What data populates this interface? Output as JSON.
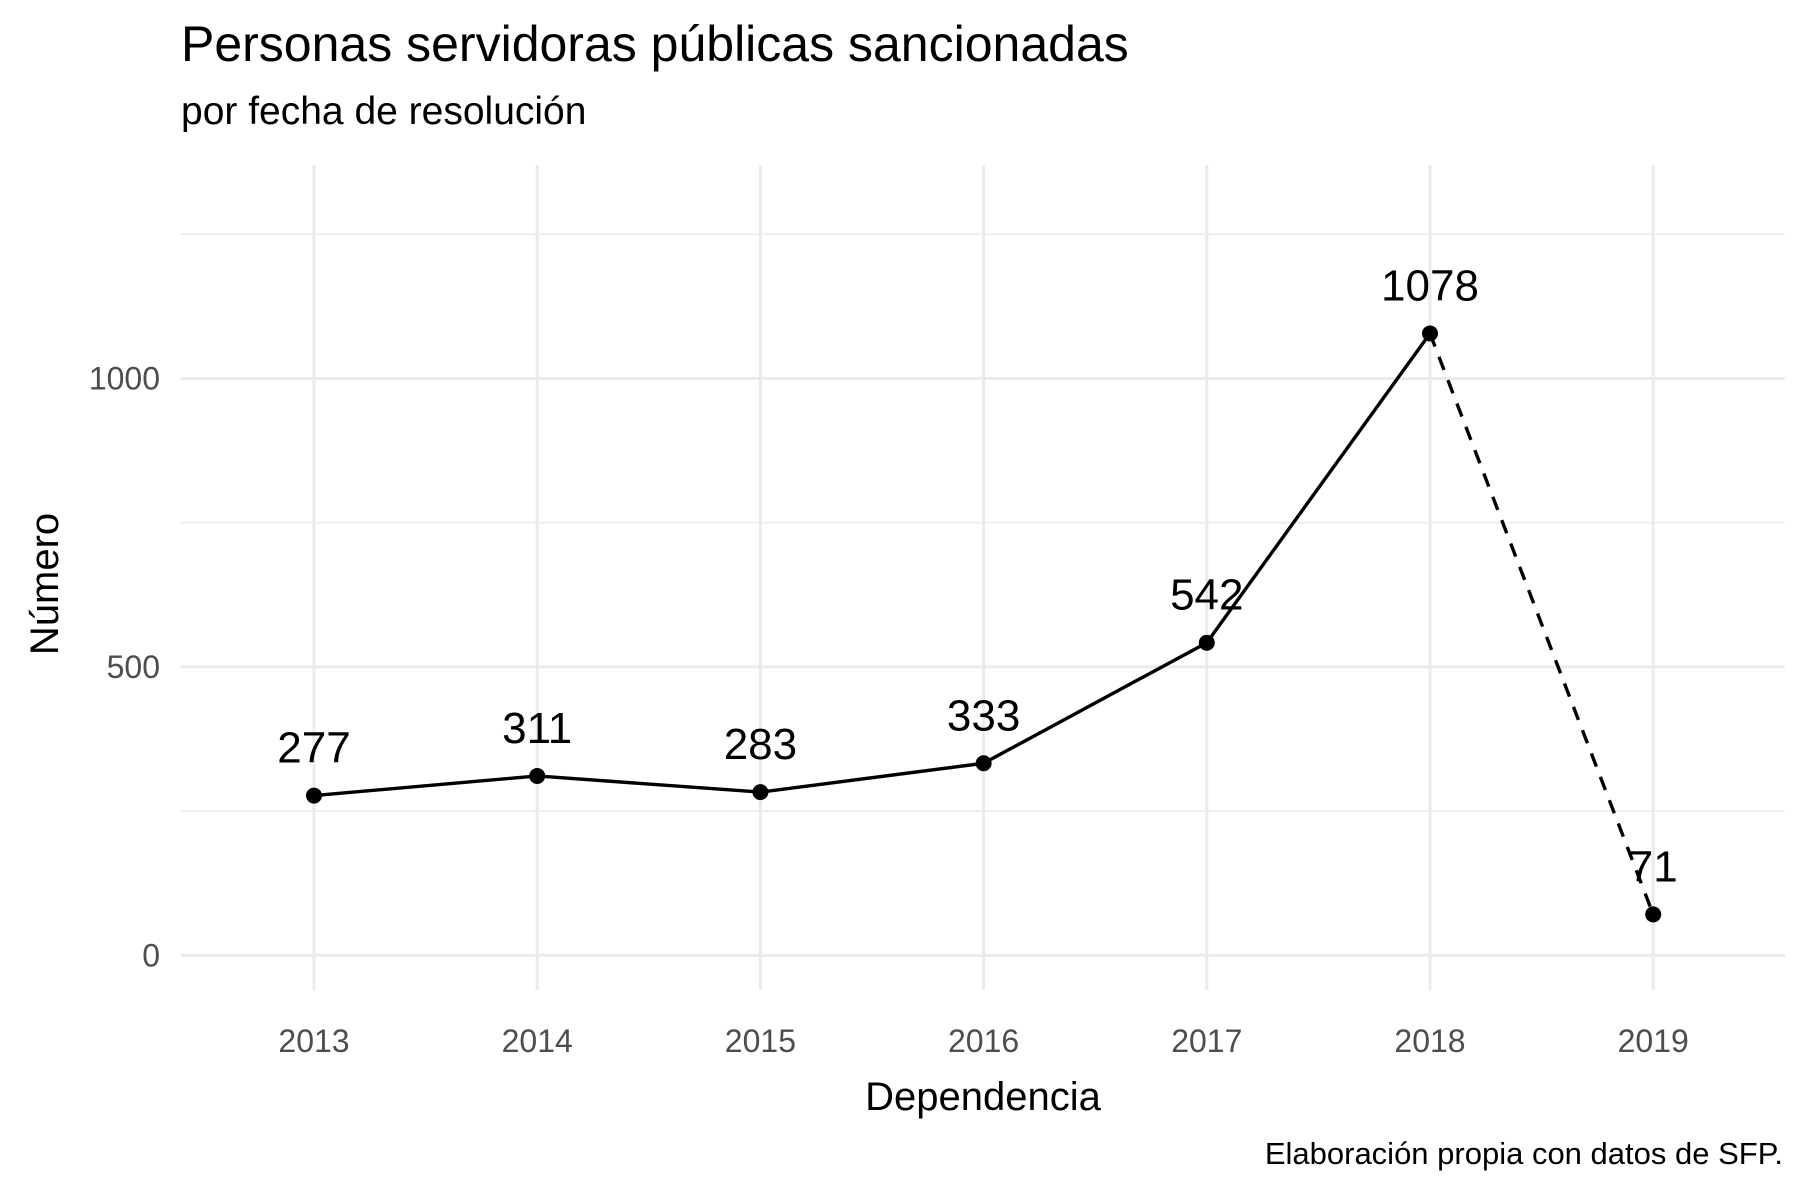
{
  "chart_data": {
    "type": "line",
    "title": "Personas servidoras públicas sancionadas",
    "subtitle": "por fecha de resolución",
    "caption": "Elaboración propia con datos de SFP.",
    "xlabel": "Dependencia",
    "ylabel": "Número",
    "categories": [
      "2013",
      "2014",
      "2015",
      "2016",
      "2017",
      "2018",
      "2019"
    ],
    "values": [
      277,
      311,
      283,
      333,
      542,
      1078,
      71
    ],
    "solid_segment": [
      "2013",
      "2018"
    ],
    "dashed_segment": [
      "2018",
      "2019"
    ],
    "ylim": [
      -60,
      1370
    ],
    "yticks": [
      0,
      500,
      1000
    ],
    "y_minor_ticks": [
      250,
      750,
      1250
    ],
    "grid": true,
    "line_color": "#000000",
    "grid_color": "#ebebeb",
    "legend": "none"
  }
}
